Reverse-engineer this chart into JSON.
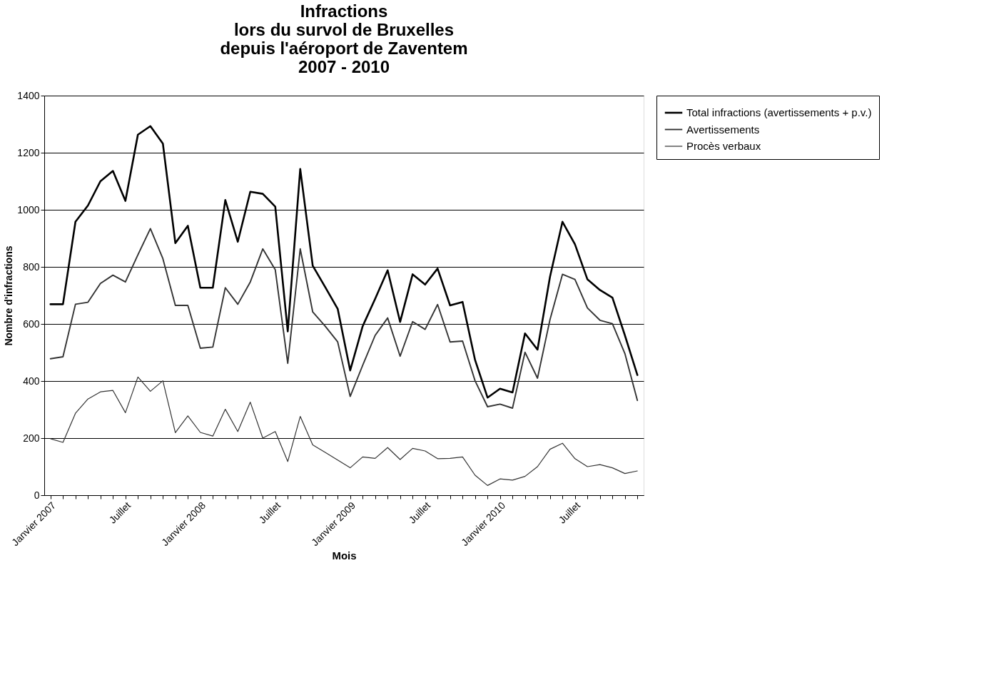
{
  "chart_data": {
    "type": "line",
    "title": "Infractions\nlors du survol de Bruxelles\ndepuis l'aéroport de Zaventem\n2007 - 2010",
    "xlabel": "Mois",
    "ylabel": "Nombre d'infractions",
    "categories": [
      "Janvier 2007",
      null,
      null,
      null,
      null,
      null,
      "Juillet",
      null,
      null,
      null,
      null,
      null,
      "Janvier 2008",
      null,
      null,
      null,
      null,
      null,
      "Juillet",
      null,
      null,
      null,
      null,
      null,
      "Janvier 2009",
      null,
      null,
      null,
      null,
      null,
      "Juillet",
      null,
      null,
      null,
      null,
      null,
      "Janvier 2010",
      null,
      null,
      null,
      null,
      null,
      "Juillet",
      null,
      null,
      null,
      null,
      null
    ],
    "series": [
      {
        "name": "Total infractions (avertissements + p.v.)",
        "color": "#000000",
        "values": [
          669,
          669,
          958,
          1015,
          1100,
          1136,
          1031,
          1263,
          1293,
          1232,
          883,
          944,
          727,
          727,
          1034,
          888,
          1063,
          1056,
          1011,
          574,
          1143,
          804,
          729,
          653,
          437,
          592,
          688,
          788,
          607,
          774,
          738,
          794,
          665,
          677,
          474,
          342,
          373,
          360,
          567,
          510,
          765,
          958,
          879,
          756,
          719,
          692,
          560,
          421
        ]
      },
      {
        "name": "Avertissements",
        "color": "#333333",
        "values": [
          478,
          485,
          669,
          676,
          742,
          771,
          747,
          842,
          934,
          829,
          665,
          665,
          515,
          519,
          727,
          669,
          747,
          863,
          790,
          462,
          863,
          642,
          592,
          537,
          346,
          455,
          560,
          621,
          487,
          608,
          581,
          668,
          537,
          540,
          401,
          310,
          319,
          305,
          501,
          410,
          615,
          774,
          756,
          656,
          613,
          601,
          496,
          332
        ]
      },
      {
        "name": "Procès verbaux",
        "color": "#333333",
        "values": [
          198,
          185,
          287,
          337,
          362,
          367,
          289,
          414,
          364,
          401,
          219,
          278,
          220,
          207,
          301,
          223,
          326,
          200,
          223,
          118,
          276,
          176,
          150,
          123,
          96,
          134,
          129,
          167,
          125,
          164,
          155,
          128,
          129,
          134,
          70,
          34,
          57,
          53,
          66,
          100,
          161,
          182,
          128,
          100,
          107,
          96,
          76,
          85
        ]
      }
    ],
    "ylim": [
      0,
      1400
    ],
    "yticks": [
      0,
      200,
      400,
      600,
      800,
      1000,
      1200,
      1400
    ],
    "grid": "y",
    "legend": "right"
  }
}
